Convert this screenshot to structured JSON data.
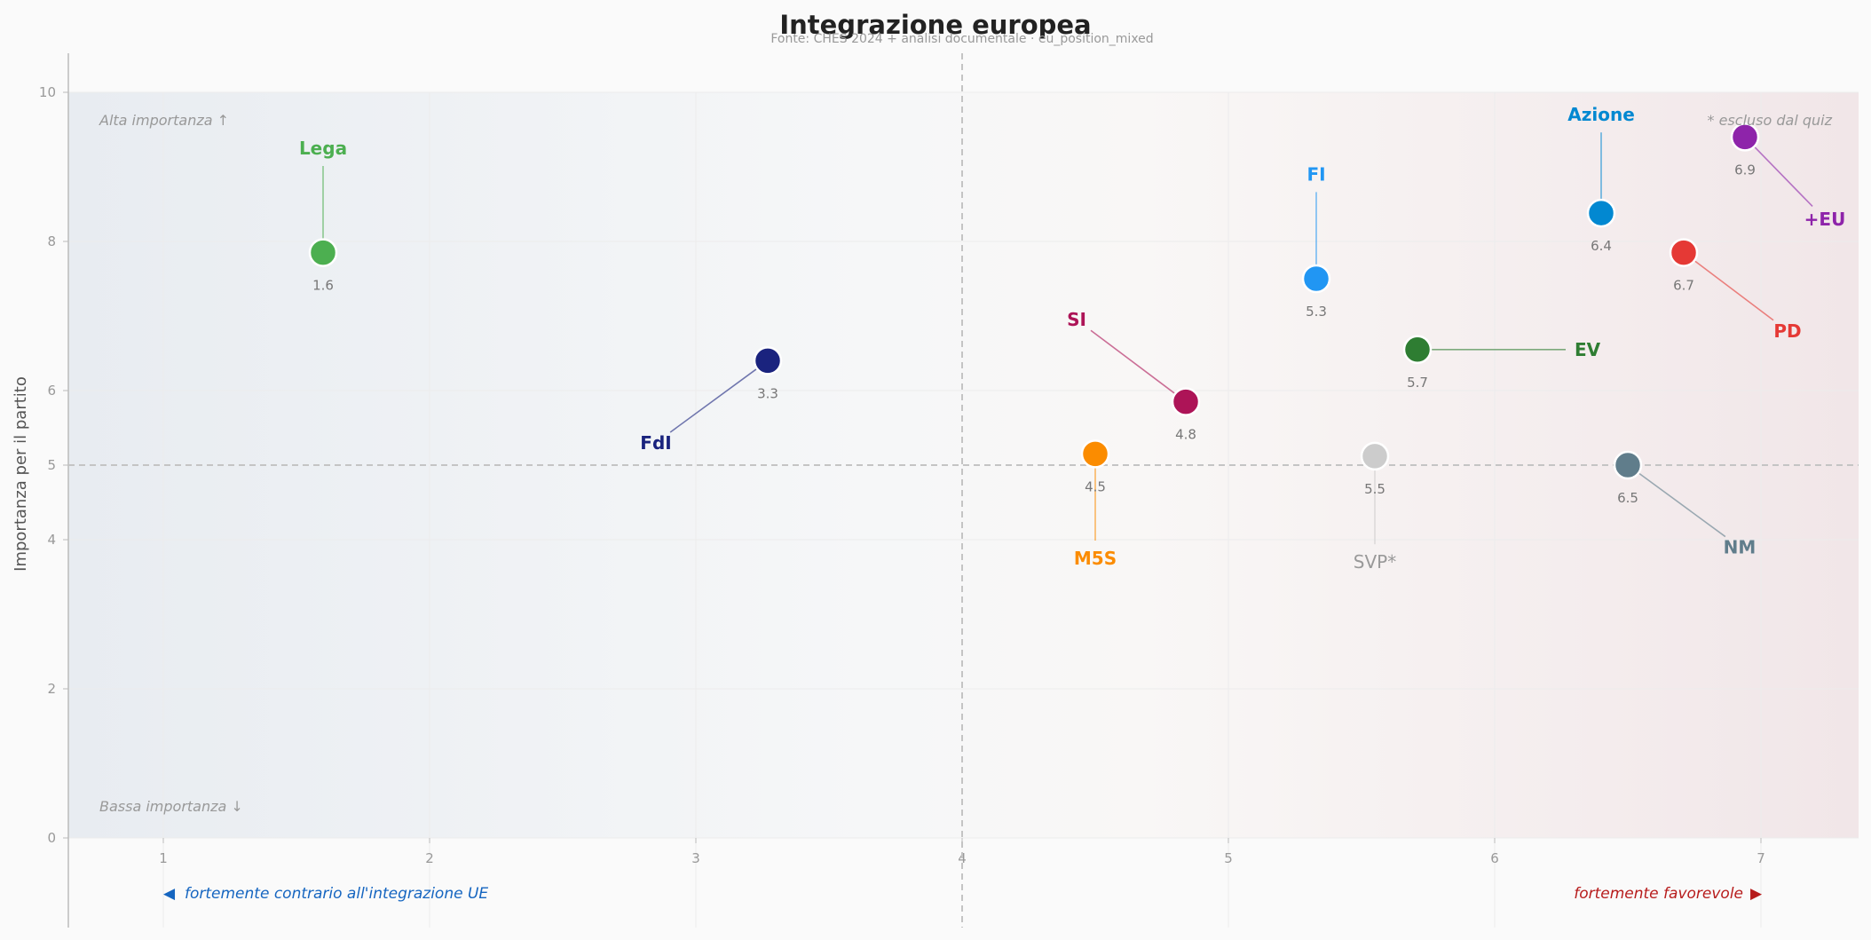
{
  "chart_data": {
    "type": "scatter",
    "title": "Integrazione europea",
    "subtitle": "Fonte: CHES 2024 + analisi documentale  ·  eu_position_mixed",
    "xlabel": "",
    "ylabel": "Importanza per il partito",
    "xlim": [
      0.65,
      7.35
    ],
    "ylim": [
      -1.2,
      10.5
    ],
    "x_ticks": [
      "1",
      "2",
      "3",
      "4",
      "5",
      "6",
      "7"
    ],
    "y_ticks": [
      "0",
      "2",
      "4",
      "5",
      "6",
      "8",
      "10"
    ],
    "x_midline": 4,
    "y_midline": 5,
    "grid": true,
    "corner_labels": {
      "top_left": "Alta importanza ↑",
      "bottom_left": "Bassa importanza ↓",
      "top_right": "* escluso dal quiz"
    },
    "axis_extremes": {
      "left": "fortemente contrario all'integrazione UE",
      "left_arrow": "◀",
      "right": "fortemente favorevole",
      "right_arrow": "▶"
    },
    "points": [
      {
        "party": "Lega",
        "x": 1.6,
        "y": 7.85,
        "value_label": "1.6",
        "color": "#4caf50",
        "label_x": 1.6,
        "label_y": 9.25
      },
      {
        "party": "FdI",
        "x": 3.27,
        "y": 6.4,
        "value_label": "3.3",
        "color": "#1a237e",
        "label_x": 2.85,
        "label_y": 5.3
      },
      {
        "party": "SI",
        "x": 4.84,
        "y": 5.85,
        "value_label": "4.8",
        "color": "#ad1457",
        "label_x": 4.43,
        "label_y": 6.95
      },
      {
        "party": "M5S",
        "x": 4.5,
        "y": 5.15,
        "value_label": "4.5",
        "color": "#fb8c00",
        "label_x": 4.5,
        "label_y": 3.75
      },
      {
        "party": "FI",
        "x": 5.33,
        "y": 7.5,
        "value_label": "5.3",
        "color": "#2196f3",
        "label_x": 5.33,
        "label_y": 8.9
      },
      {
        "party": "SVP*",
        "x": 5.55,
        "y": 5.12,
        "value_label": "5.5",
        "color": "#cccccc",
        "label_x": 5.55,
        "label_y": 3.7,
        "excluded": true
      },
      {
        "party": "EV",
        "x": 5.71,
        "y": 6.55,
        "value_label": "5.7",
        "color": "#2e7d32",
        "label_x": 6.3,
        "label_y": 6.55
      },
      {
        "party": "Azione",
        "x": 6.4,
        "y": 8.38,
        "value_label": "6.4",
        "color": "#0288d1",
        "label_x": 6.4,
        "label_y": 9.7
      },
      {
        "party": "NM",
        "x": 6.5,
        "y": 5.0,
        "value_label": "6.5",
        "color": "#607d8b",
        "label_x": 6.92,
        "label_y": 3.9
      },
      {
        "party": "PD",
        "x": 6.71,
        "y": 7.85,
        "value_label": "6.7",
        "color": "#e53935",
        "label_x": 7.1,
        "label_y": 6.8
      },
      {
        "party": "+EU",
        "x": 6.94,
        "y": 9.4,
        "value_label": "6.9",
        "color": "#8e24aa",
        "label_x": 7.24,
        "label_y": 8.3
      }
    ]
  }
}
